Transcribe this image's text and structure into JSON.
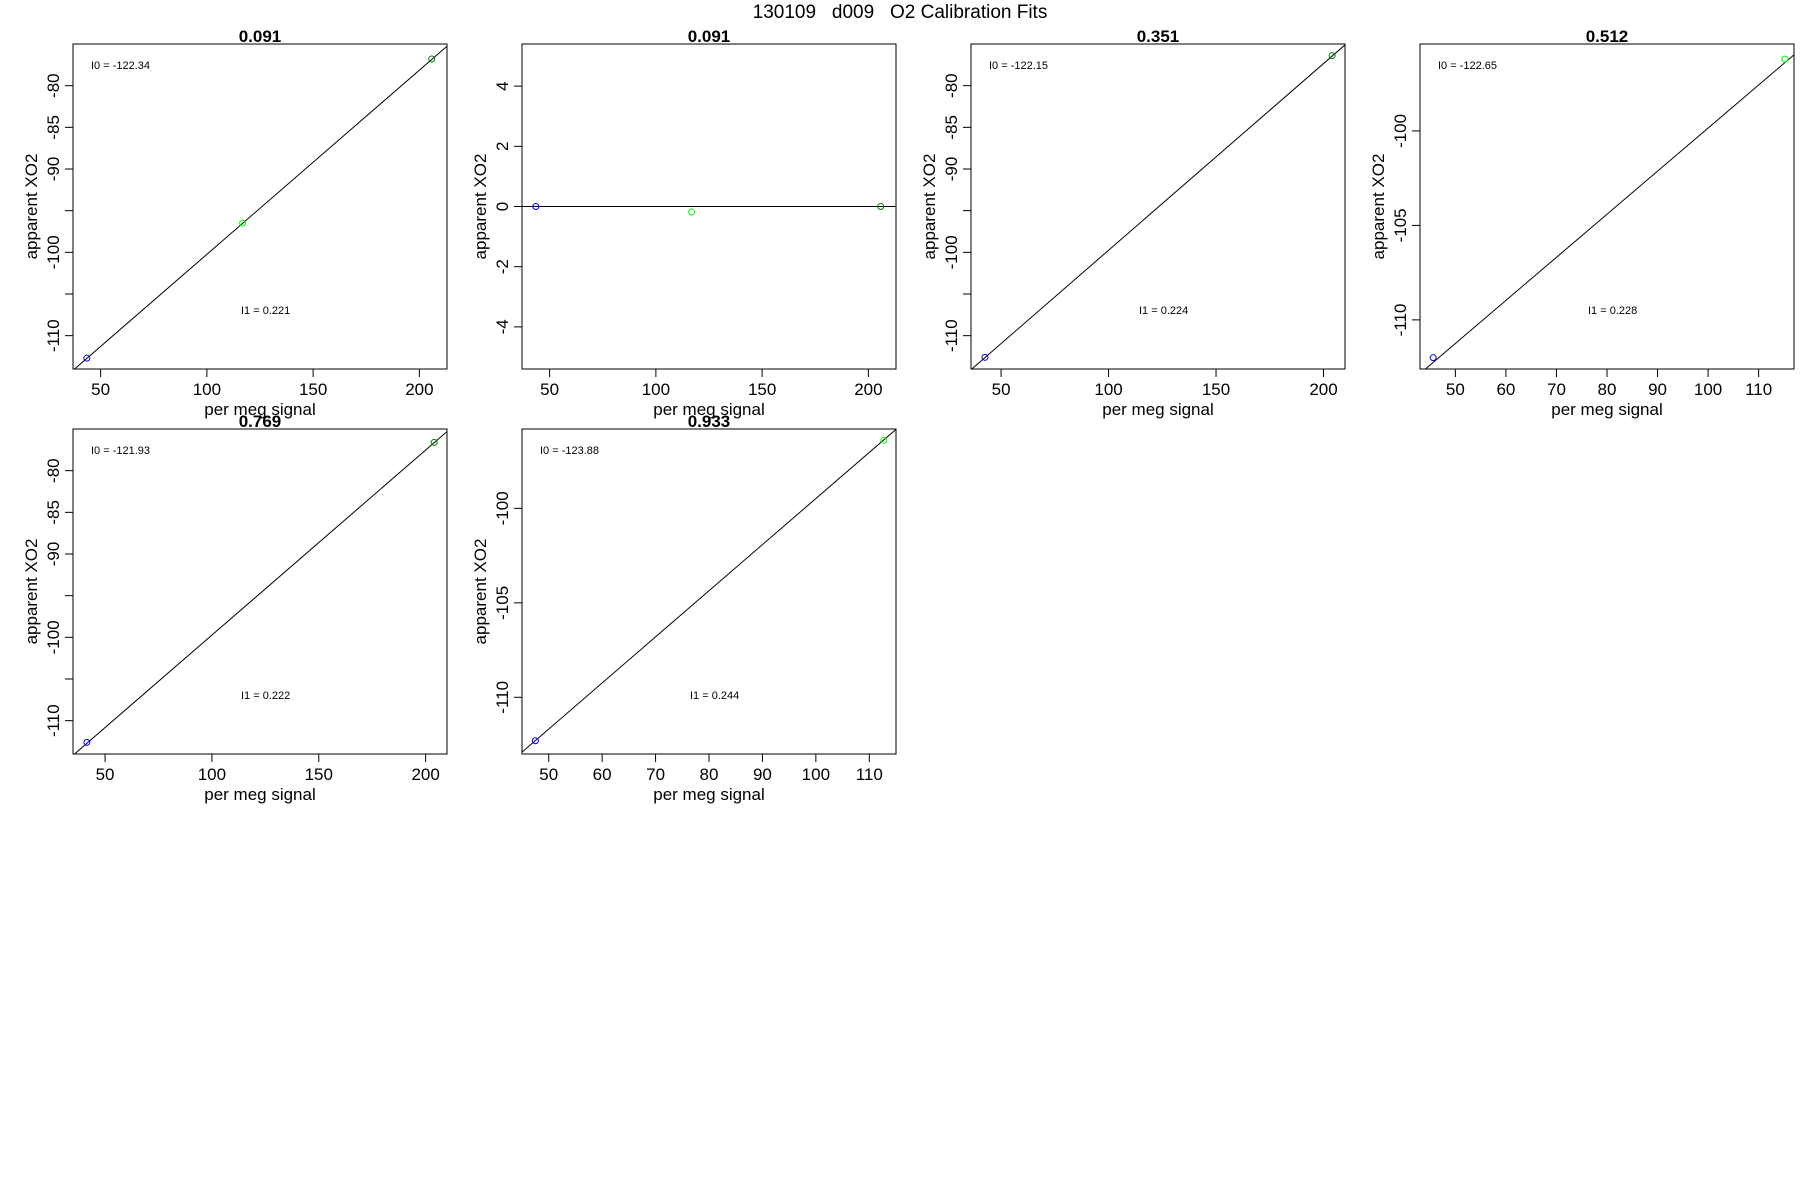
{
  "page_title": "130109   d009   O2 Calibration Fits",
  "chart_data": [
    {
      "type": "scatter",
      "title": "0.091",
      "xlabel": "per meg signal",
      "ylabel": "apparent XO2",
      "xlim": [
        37,
        213
      ],
      "ylim": [
        -114,
        -75
      ],
      "xticks": [
        50,
        100,
        150,
        200
      ],
      "yticks": [
        -80,
        -85,
        -90,
        -95,
        -100,
        -105,
        -110
      ],
      "ytick_labels": [
        "-80",
        "-85",
        "-90",
        "",
        "-100",
        "",
        "-110"
      ],
      "annotation_i0": "I0 =  -122.34",
      "annotation_i1": "I1 =  0.221",
      "fit_line": {
        "intercept": -122.34,
        "slope": 0.221
      },
      "points": [
        {
          "x": 43.5,
          "y": -112.7,
          "color": "#0000ff"
        },
        {
          "x": 116.8,
          "y": -96.5,
          "color": "#00ff00"
        },
        {
          "x": 205.8,
          "y": -76.8,
          "color": "#008000"
        }
      ]
    },
    {
      "type": "scatter",
      "title": "0.091",
      "xlabel": "per meg signal",
      "ylabel": "apparent XO2",
      "xlim": [
        37,
        213
      ],
      "ylim": [
        -5.4,
        5.4
      ],
      "xticks": [
        50,
        100,
        150,
        200
      ],
      "yticks": [
        4,
        2,
        0,
        -2,
        -4
      ],
      "ytick_labels": [
        "4",
        "2",
        "0",
        "-2",
        "-4"
      ],
      "annotation_i0": "",
      "annotation_i1": "",
      "fit_line": {
        "intercept": 0,
        "slope": 0
      },
      "points": [
        {
          "x": 43.5,
          "y": 0.0,
          "color": "#0000ff"
        },
        {
          "x": 116.8,
          "y": -0.18,
          "color": "#00ff00"
        },
        {
          "x": 205.8,
          "y": 0.0,
          "color": "#008000"
        }
      ]
    },
    {
      "type": "scatter",
      "title": "0.351",
      "xlabel": "per meg signal",
      "ylabel": "apparent XO2",
      "xlim": [
        36,
        210
      ],
      "ylim": [
        -114,
        -75
      ],
      "xticks": [
        50,
        100,
        150,
        200
      ],
      "yticks": [
        -80,
        -85,
        -90,
        -95,
        -100,
        -105,
        -110
      ],
      "ytick_labels": [
        "-80",
        "-85",
        "-90",
        "",
        "-100",
        "",
        "-110"
      ],
      "annotation_i0": "I0 =  -122.15",
      "annotation_i1": "I1 =  0.224",
      "fit_line": {
        "intercept": -122.15,
        "slope": 0.224
      },
      "points": [
        {
          "x": 42.5,
          "y": -112.6,
          "color": "#0000ff"
        },
        {
          "x": 204.0,
          "y": -76.4,
          "color": "#008000"
        }
      ]
    },
    {
      "type": "scatter",
      "title": "0.512",
      "xlabel": "per meg signal",
      "ylabel": "apparent XO2",
      "xlim": [
        43,
        117
      ],
      "ylim": [
        -112.6,
        -95.4
      ],
      "xticks": [
        50,
        60,
        70,
        80,
        90,
        100,
        110
      ],
      "yticks": [
        -100,
        -105,
        -110
      ],
      "ytick_labels": [
        "-100",
        "-105",
        "-110"
      ],
      "annotation_i0": "I0 =  -122.65",
      "annotation_i1": "I1 =  0.228",
      "fit_line": {
        "intercept": -122.65,
        "slope": 0.228
      },
      "points": [
        {
          "x": 45.6,
          "y": -112.0,
          "color": "#0000ff"
        },
        {
          "x": 115.2,
          "y": -96.2,
          "color": "#00ff00"
        }
      ]
    },
    {
      "type": "scatter",
      "title": "0.769",
      "xlabel": "per meg signal",
      "ylabel": "apparent XO2",
      "xlim": [
        35,
        210
      ],
      "ylim": [
        -114,
        -75
      ],
      "xticks": [
        50,
        100,
        150,
        200
      ],
      "yticks": [
        -80,
        -85,
        -90,
        -95,
        -100,
        -105,
        -110
      ],
      "ytick_labels": [
        "-80",
        "-85",
        "-90",
        "",
        "-100",
        "",
        "-110"
      ],
      "annotation_i0": "I0 =  -121.93",
      "annotation_i1": "I1 =  0.222",
      "fit_line": {
        "intercept": -121.93,
        "slope": 0.222
      },
      "points": [
        {
          "x": 41.5,
          "y": -112.6,
          "color": "#0000ff"
        },
        {
          "x": 204.0,
          "y": -76.6,
          "color": "#008000"
        }
      ]
    },
    {
      "type": "scatter",
      "title": "0.933",
      "xlabel": "per meg signal",
      "ylabel": "apparent XO2",
      "xlim": [
        45,
        115
      ],
      "ylim": [
        -113,
        -95.8
      ],
      "xticks": [
        50,
        60,
        70,
        80,
        90,
        100,
        110
      ],
      "yticks": [
        -100,
        -105,
        -110
      ],
      "ytick_labels": [
        "-100",
        "-105",
        "-110"
      ],
      "annotation_i0": "I0 =  -123.88",
      "annotation_i1": "I1 =  0.244",
      "fit_line": {
        "intercept": -123.88,
        "slope": 0.244
      },
      "points": [
        {
          "x": 47.5,
          "y": -112.3,
          "color": "#0000ff"
        },
        {
          "x": 112.7,
          "y": -96.4,
          "color": "#00ff00"
        }
      ]
    }
  ]
}
